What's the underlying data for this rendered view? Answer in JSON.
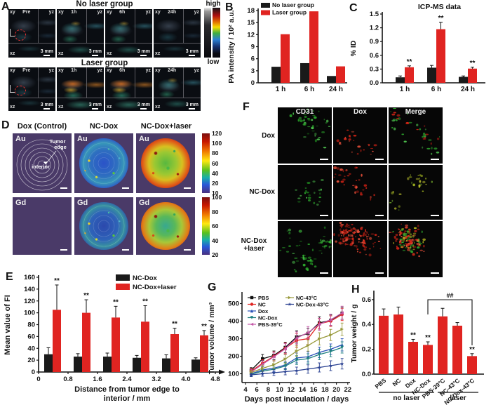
{
  "accent_colors": {
    "red": "#e02421",
    "black": "#1a1a1a",
    "purple_bg": "#4a3a68"
  },
  "panels": {
    "A": {
      "label": "A",
      "groups": [
        {
          "title": "No laser group",
          "tiles": [
            {
              "time": "Pre",
              "heat": "dim",
              "pre": true
            },
            {
              "time": "1h",
              "heat": "warm"
            },
            {
              "time": "6h",
              "heat": "warm"
            },
            {
              "time": "24h",
              "heat": "dim"
            }
          ]
        },
        {
          "title": "Laser group",
          "tiles": [
            {
              "time": "Pre",
              "heat": "dim",
              "pre": true
            },
            {
              "time": "1h",
              "heat": "hot"
            },
            {
              "time": "6h",
              "heat": "hot"
            },
            {
              "time": "24h",
              "heat": "warm"
            }
          ]
        }
      ],
      "view_labels": {
        "top_left": "xy",
        "top_right": "yz",
        "bottom_left": "xz"
      },
      "scale_label": "3 mm",
      "colorbar": {
        "high": "high",
        "low": "low"
      }
    },
    "B": {
      "label": "B"
    },
    "C": {
      "label": "C"
    },
    "D": {
      "label": "D",
      "columns": [
        "Dox (Control)",
        "NC-Dox",
        "NC-Dox+laser"
      ],
      "rows": [
        "Au",
        "Gd"
      ],
      "tiles": [
        [
          "rings",
          "cool",
          "hot"
        ],
        [
          "plain",
          "cool2",
          "hot2"
        ]
      ],
      "annotations": {
        "edge_line1": "Tumor",
        "edge_line2": "edge",
        "interior": "interior"
      },
      "colorbars": [
        [
          "120",
          "100",
          "80",
          "60",
          "40",
          "20",
          "10"
        ],
        [
          "100",
          "80",
          "60",
          "40",
          "20"
        ]
      ]
    },
    "E": {
      "label": "E"
    },
    "F": {
      "label": "F",
      "columns": [
        "CD31",
        "Dox",
        "Merge"
      ],
      "rows": [
        "Dox",
        "NC-Dox",
        "NC-Dox\n+laser"
      ],
      "tiles": [
        [
          {
            "c": "green",
            "n": 42,
            "seed": 3
          },
          {
            "c": "red",
            "n": 24,
            "seed": 5
          },
          {
            "c": "mix",
            "n": 44,
            "seed": 7
          }
        ],
        [
          {
            "c": "green",
            "n": 24,
            "seed": 11
          },
          {
            "c": "red",
            "n": 44,
            "seed": 13
          },
          {
            "c": "yellow",
            "n": 28,
            "seed": 17
          }
        ],
        [
          {
            "c": "green",
            "n": 62,
            "seed": 19
          },
          {
            "c": "red",
            "n": 125,
            "seed": 23
          },
          {
            "c": "mixheavy",
            "n": 135,
            "seed": 29
          }
        ]
      ]
    },
    "G": {
      "label": "G"
    },
    "H": {
      "label": "H"
    }
  },
  "chart_data": [
    {
      "panel": "B",
      "type": "bar",
      "title": "",
      "ylabel": "PA intensity / 10² a.u.",
      "categories": [
        "1 h",
        "6 h",
        "24 h"
      ],
      "ylim": [
        0,
        18
      ],
      "yticks": [
        "0",
        "3",
        "6",
        "9",
        "12",
        "15",
        "18"
      ],
      "legend_position": "top-left-inside",
      "series": [
        {
          "name": "No laser group",
          "color": "#1a1a1a",
          "values": [
            4.0,
            4.9,
            1.7
          ]
        },
        {
          "name": "Laser group",
          "color": "#e02421",
          "values": [
            12.1,
            17.8,
            4.1
          ]
        }
      ]
    },
    {
      "panel": "C",
      "type": "bar",
      "title": "ICP-MS data",
      "ylabel": "% ID",
      "categories": [
        "1 h",
        "6 h",
        "24 h"
      ],
      "ylim": [
        0,
        1.5
      ],
      "yticks": [
        "0.0",
        "0.3",
        "0.6",
        "0.9",
        "1.2",
        "1.5"
      ],
      "series": [
        {
          "name": "No laser group",
          "color": "#1a1a1a",
          "values": [
            0.12,
            0.33,
            0.13
          ],
          "errors": [
            0.03,
            0.05,
            0.02
          ]
        },
        {
          "name": "Laser group",
          "color": "#e02421",
          "values": [
            0.34,
            1.17,
            0.31
          ],
          "errors": [
            0.03,
            0.15,
            0.03
          ],
          "sig": [
            "**",
            "**",
            "**"
          ]
        }
      ]
    },
    {
      "panel": "E",
      "type": "bar",
      "title": "",
      "ylabel": "Mean value of FI",
      "xlabel_line1": "Distance from tumor edge to",
      "xlabel_line2": "interior / mm",
      "boundary_ticks": [
        "0",
        "0.8",
        "1.6",
        "2.4",
        "3.2",
        "4.0",
        "4.8"
      ],
      "ylim": [
        0,
        160
      ],
      "yticks": [
        "0",
        "20",
        "40",
        "60",
        "80",
        "100",
        "120",
        "140",
        "160"
      ],
      "series": [
        {
          "name": "NC-Dox",
          "color": "#1a1a1a",
          "values": [
            30,
            26,
            26,
            24,
            23,
            21
          ],
          "errors": [
            11,
            5,
            6,
            4,
            6,
            3
          ]
        },
        {
          "name": "NC-Dox+laser",
          "color": "#e02421",
          "values": [
            105,
            100,
            92,
            85,
            64,
            62
          ],
          "errors": [
            42,
            22,
            19,
            27,
            10,
            8
          ],
          "sig": [
            "**",
            "**",
            "**",
            "**",
            "**",
            "**"
          ]
        }
      ]
    },
    {
      "panel": "G",
      "type": "line",
      "ylabel": "Tumor volume / mm³",
      "xlabel": "Days post inoculation / days",
      "x": [
        5,
        7,
        9,
        11,
        13,
        15,
        17,
        19,
        21
      ],
      "xticks": [
        "4",
        "6",
        "8",
        "10",
        "12",
        "14",
        "16",
        "18",
        "20",
        "22"
      ],
      "ylim": [
        50,
        550
      ],
      "yticks": [
        "100",
        "200",
        "300",
        "400",
        "500"
      ],
      "series": [
        {
          "name": "PBS",
          "color": "#111111",
          "marker": "square",
          "values": [
            120,
            185,
            205,
            250,
            310,
            330,
            390,
            405,
            445
          ],
          "errors": [
            15,
            25,
            25,
            30,
            35,
            30,
            35,
            30,
            35
          ]
        },
        {
          "name": "NC",
          "color": "#e02421",
          "marker": "circle",
          "values": [
            115,
            160,
            200,
            245,
            290,
            300,
            385,
            400,
            438
          ],
          "errors": [
            15,
            20,
            25,
            30,
            40,
            35,
            30,
            30,
            35
          ]
        },
        {
          "name": "Dox",
          "color": "#2a52b8",
          "marker": "triangle-up",
          "values": [
            100,
            122,
            132,
            150,
            190,
            197,
            222,
            240,
            265
          ],
          "errors": [
            12,
            18,
            20,
            22,
            28,
            30,
            30,
            30,
            35
          ]
        },
        {
          "name": "NC-Dox",
          "color": "#1f8080",
          "marker": "triangle-down",
          "values": [
            97,
            115,
            126,
            144,
            178,
            186,
            210,
            227,
            250
          ],
          "errors": [
            12,
            15,
            18,
            20,
            25,
            28,
            30,
            30,
            32
          ]
        },
        {
          "name": "PBS-39°C",
          "color": "#c457a8",
          "marker": "triangle-left",
          "values": [
            110,
            154,
            197,
            242,
            304,
            334,
            382,
            408,
            447
          ],
          "errors": [
            15,
            20,
            25,
            30,
            35,
            35,
            35,
            32,
            38
          ]
        },
        {
          "name": "NC-43°C",
          "color": "#98993a",
          "marker": "triangle-right",
          "values": [
            107,
            131,
            152,
            184,
            229,
            261,
            299,
            321,
            354
          ],
          "errors": [
            12,
            18,
            22,
            25,
            30,
            32,
            35,
            32,
            35
          ]
        },
        {
          "name": "NC-Dox-43°C",
          "color": "#283f90",
          "marker": "star",
          "values": [
            94,
            100,
            106,
            112,
            118,
            127,
            136,
            146,
            157
          ],
          "errors": [
            10,
            14,
            16,
            18,
            20,
            24,
            26,
            28,
            30
          ]
        }
      ]
    },
    {
      "panel": "H",
      "type": "bar",
      "title": "",
      "ylabel": "Tumor weight / g",
      "categories": [
        "PBS",
        "NC",
        "Dox",
        "NC-Dox",
        "PBS-39°C",
        "NC-43°C",
        "NC-Dox-43°C"
      ],
      "ylim": [
        0,
        0.65
      ],
      "yticks": [
        "0.0",
        "0.2",
        "0.4",
        "0.6"
      ],
      "series": [
        {
          "name": "Tumor weight",
          "color": "#e02421",
          "values": [
            0.47,
            0.48,
            0.26,
            0.235,
            0.465,
            0.39,
            0.145
          ],
          "errors": [
            0.055,
            0.06,
            0.02,
            0.025,
            0.065,
            0.025,
            0.02
          ],
          "sig": [
            "",
            "",
            "**",
            "**",
            "",
            "",
            "**"
          ]
        }
      ],
      "bracket": {
        "from": 3,
        "to": 6,
        "label": "##"
      },
      "group_labels": [
        {
          "text": "no laser",
          "from": 0,
          "to": 3
        },
        {
          "text": "laser",
          "from": 4,
          "to": 6
        }
      ]
    }
  ]
}
